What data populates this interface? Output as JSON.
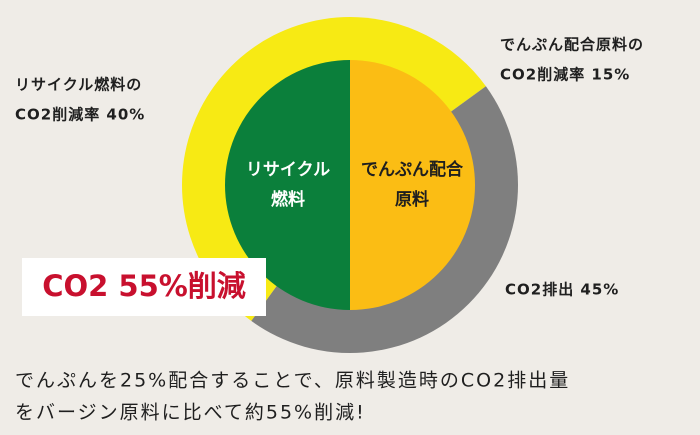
{
  "chart_data": {
    "type": "donut",
    "outer": {
      "labels": [
        [
          "でんぷん配合原料の",
          "CO2削減率 15%"
        ],
        [
          "CO2排出 45%"
        ],
        [
          "リサイクル燃料の",
          "CO2削減率 40%"
        ]
      ],
      "values": [
        15,
        45,
        40
      ],
      "colors": [
        "#f7ea14",
        "#7f7f7f",
        "#f7ea14"
      ]
    },
    "inner": {
      "labels": [
        [
          "でんぷん配合",
          "原料"
        ],
        [
          "リサイクル",
          "燃料"
        ]
      ],
      "values": [
        50,
        50
      ],
      "colors": [
        "#fbbd14",
        "#0b7f3b"
      ],
      "label_colors": [
        "#1f1f1f",
        "#ffffff"
      ]
    },
    "badge": "CO2 55%削減",
    "caption": [
      "でんぷんを25%配合することで、原料製造時のCO2排出量",
      "をバージン原料に比べて約55%削減!"
    ]
  }
}
